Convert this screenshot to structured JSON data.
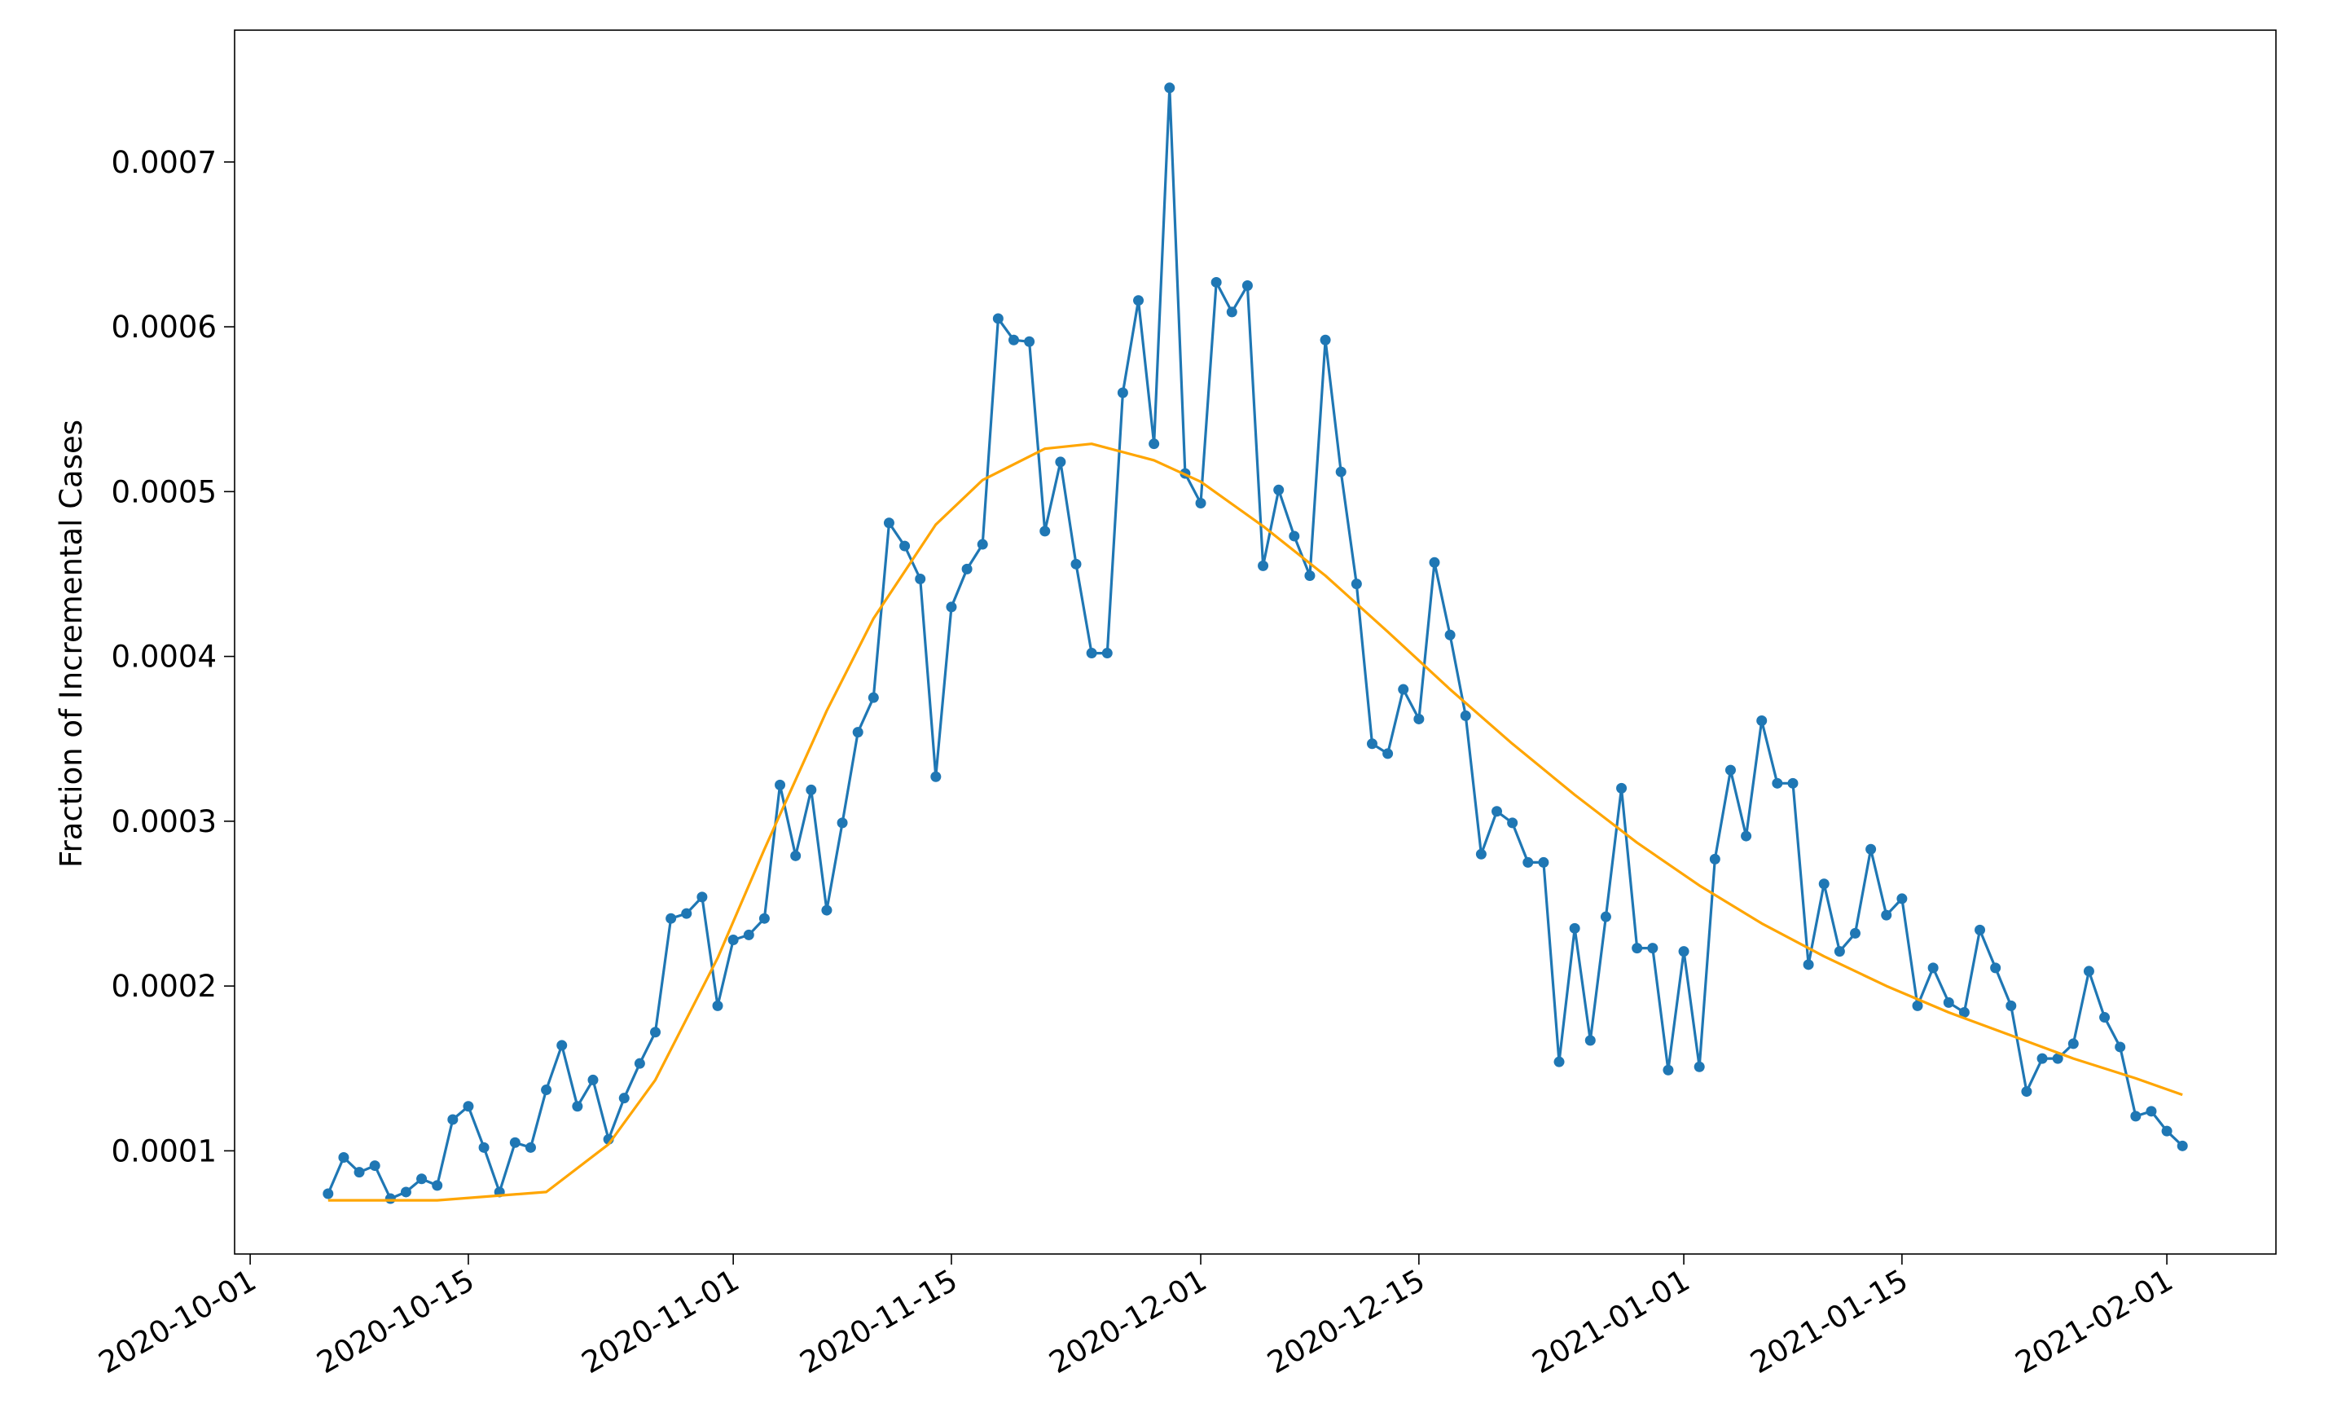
{
  "chart_data": {
    "type": "line",
    "ylabel": "Fraction of Incremental Cases",
    "xlim": [
      "2020-09-30",
      "2021-02-08"
    ],
    "xticks": [
      "2020-10-01",
      "2020-10-15",
      "2020-11-01",
      "2020-11-15",
      "2020-12-01",
      "2020-12-15",
      "2021-01-01",
      "2021-01-15",
      "2021-02-01"
    ],
    "ylim": [
      3.74e-05,
      0.00078
    ],
    "yticks": [
      0.0001,
      0.0002,
      0.0003,
      0.0004,
      0.0005,
      0.0006,
      0.0007
    ],
    "series": [
      {
        "color": "#1f77b4",
        "markers": true,
        "x": [
          "2020-10-06",
          "2020-10-07",
          "2020-10-08",
          "2020-10-09",
          "2020-10-10",
          "2020-10-11",
          "2020-10-12",
          "2020-10-13",
          "2020-10-14",
          "2020-10-15",
          "2020-10-16",
          "2020-10-17",
          "2020-10-18",
          "2020-10-19",
          "2020-10-20",
          "2020-10-21",
          "2020-10-22",
          "2020-10-23",
          "2020-10-24",
          "2020-10-25",
          "2020-10-26",
          "2020-10-27",
          "2020-10-28",
          "2020-10-29",
          "2020-10-30",
          "2020-10-31",
          "2020-11-01",
          "2020-11-02",
          "2020-11-03",
          "2020-11-04",
          "2020-11-05",
          "2020-11-06",
          "2020-11-07",
          "2020-11-08",
          "2020-11-09",
          "2020-11-10",
          "2020-11-11",
          "2020-11-12",
          "2020-11-13",
          "2020-11-14",
          "2020-11-15",
          "2020-11-16",
          "2020-11-17",
          "2020-11-18",
          "2020-11-19",
          "2020-11-20",
          "2020-11-21",
          "2020-11-22",
          "2020-11-23",
          "2020-11-24",
          "2020-11-25",
          "2020-11-26",
          "2020-11-27",
          "2020-11-28",
          "2020-11-29",
          "2020-11-30",
          "2020-12-01",
          "2020-12-02",
          "2020-12-03",
          "2020-12-04",
          "2020-12-05",
          "2020-12-06",
          "2020-12-07",
          "2020-12-08",
          "2020-12-09",
          "2020-12-10",
          "2020-12-11",
          "2020-12-12",
          "2020-12-13",
          "2020-12-14",
          "2020-12-15",
          "2020-12-16",
          "2020-12-17",
          "2020-12-18",
          "2020-12-19",
          "2020-12-20",
          "2020-12-21",
          "2020-12-22",
          "2020-12-23",
          "2020-12-24",
          "2020-12-25",
          "2020-12-26",
          "2020-12-27",
          "2020-12-28",
          "2020-12-29",
          "2020-12-30",
          "2020-12-31",
          "2021-01-01",
          "2021-01-02",
          "2021-01-03",
          "2021-01-04",
          "2021-01-05",
          "2021-01-06",
          "2021-01-07",
          "2021-01-08",
          "2021-01-09",
          "2021-01-10",
          "2021-01-11",
          "2021-01-12",
          "2021-01-13",
          "2021-01-14",
          "2021-01-15",
          "2021-01-16",
          "2021-01-17",
          "2021-01-18",
          "2021-01-19",
          "2021-01-20",
          "2021-01-21",
          "2021-01-22",
          "2021-01-23",
          "2021-01-24",
          "2021-01-25",
          "2021-01-26",
          "2021-01-27",
          "2021-01-28",
          "2021-01-29",
          "2021-01-30",
          "2021-01-31",
          "2021-02-01",
          "2021-02-02"
        ],
        "values": [
          7.4e-05,
          9.6e-05,
          8.7e-05,
          9.1e-05,
          7.1e-05,
          7.5e-05,
          8.3e-05,
          7.9e-05,
          0.000119,
          0.000127,
          0.000102,
          7.5e-05,
          0.000105,
          0.000102,
          0.000137,
          0.000164,
          0.000127,
          0.000143,
          0.000107,
          0.000132,
          0.000153,
          0.000172,
          0.000241,
          0.000244,
          0.000254,
          0.000188,
          0.000228,
          0.000231,
          0.000241,
          0.000322,
          0.000279,
          0.000319,
          0.000246,
          0.000299,
          0.000354,
          0.000375,
          0.000481,
          0.000467,
          0.000447,
          0.000327,
          0.00043,
          0.000453,
          0.000468,
          0.000605,
          0.000592,
          0.000591,
          0.000476,
          0.000518,
          0.000456,
          0.000402,
          0.000402,
          0.00056,
          0.000616,
          0.000529,
          0.000745,
          0.000511,
          0.000493,
          0.000627,
          0.000609,
          0.000625,
          0.000455,
          0.000501,
          0.000473,
          0.000449,
          0.000592,
          0.000512,
          0.000444,
          0.000347,
          0.000341,
          0.00038,
          0.000362,
          0.000457,
          0.000413,
          0.000364,
          0.00028,
          0.000306,
          0.000299,
          0.000275,
          0.000275,
          0.000154,
          0.000235,
          0.000167,
          0.000242,
          0.00032,
          0.000223,
          0.000223,
          0.000149,
          0.000221,
          0.000151,
          0.000277,
          0.000331,
          0.000291,
          0.000361,
          0.000323,
          0.000323,
          0.000213,
          0.000262,
          0.000221,
          0.000232,
          0.000283,
          0.000243,
          0.000253,
          0.000188,
          0.000211,
          0.00019,
          0.000184,
          0.000234,
          0.000211,
          0.000188,
          0.000136,
          0.000156,
          0.000156,
          0.000165,
          0.000209,
          0.000181,
          0.000163,
          0.000121,
          0.000124,
          0.000112,
          0.000103
        ]
      },
      {
        "color": "#ffa500",
        "markers": false,
        "x": [
          "2020-10-06",
          "2020-10-13",
          "2020-10-20",
          "2020-10-24",
          "2020-10-27",
          "2020-10-31",
          "2020-11-03",
          "2020-11-07",
          "2020-11-10",
          "2020-11-14",
          "2020-11-17",
          "2020-11-21",
          "2020-11-24",
          "2020-11-28",
          "2020-12-01",
          "2020-12-05",
          "2020-12-09",
          "2020-12-13",
          "2020-12-17",
          "2020-12-21",
          "2020-12-25",
          "2020-12-29",
          "2021-01-02",
          "2021-01-06",
          "2021-01-10",
          "2021-01-14",
          "2021-01-18",
          "2021-01-22",
          "2021-01-26",
          "2021-01-30",
          "2021-02-02"
        ],
        "values": [
          7e-05,
          7e-05,
          7.5e-05,
          0.000104,
          0.000143,
          0.000217,
          0.000283,
          0.000367,
          0.000423,
          0.00048,
          0.000507,
          0.000526,
          0.000529,
          0.000519,
          0.000506,
          0.000479,
          0.000449,
          0.000415,
          0.00038,
          0.000347,
          0.000316,
          0.000287,
          0.000261,
          0.000238,
          0.000218,
          0.0002,
          0.000184,
          0.00017,
          0.000156,
          0.000144,
          0.000134
        ]
      }
    ]
  }
}
